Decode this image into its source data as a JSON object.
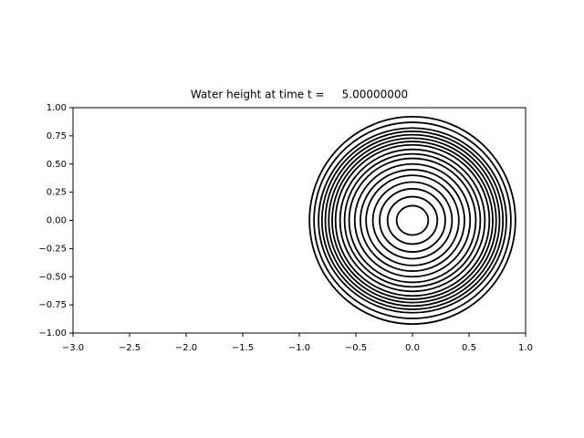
{
  "chart_data": {
    "type": "contour",
    "title": "Water height at time t =     5.00000000",
    "color": "#000000",
    "contours": [
      {
        "cx": 0.0,
        "cy": 0.0,
        "rx": 0.14,
        "ry": 0.13
      },
      {
        "cx": 0.0,
        "cy": 0.0,
        "rx": 0.22,
        "ry": 0.21
      },
      {
        "cx": 0.0,
        "cy": 0.0,
        "rx": 0.29,
        "ry": 0.28
      },
      {
        "cx": 0.0,
        "cy": 0.0,
        "rx": 0.35,
        "ry": 0.34
      },
      {
        "cx": 0.0,
        "cy": 0.0,
        "rx": 0.41,
        "ry": 0.4
      },
      {
        "cx": 0.0,
        "cy": 0.0,
        "rx": 0.46,
        "ry": 0.45
      },
      {
        "cx": 0.0,
        "cy": 0.0,
        "rx": 0.51,
        "ry": 0.5
      },
      {
        "cx": 0.0,
        "cy": 0.0,
        "rx": 0.56,
        "ry": 0.55
      },
      {
        "cx": 0.0,
        "cy": 0.0,
        "rx": 0.6,
        "ry": 0.59
      },
      {
        "cx": 0.0,
        "cy": 0.0,
        "rx": 0.64,
        "ry": 0.63
      },
      {
        "cx": 0.0,
        "cy": 0.0,
        "rx": 0.68,
        "ry": 0.67
      },
      {
        "cx": 0.0,
        "cy": 0.0,
        "rx": 0.71,
        "ry": 0.7
      },
      {
        "cx": 0.0,
        "cy": 0.0,
        "rx": 0.74,
        "ry": 0.73
      },
      {
        "cx": 0.0,
        "cy": 0.0,
        "rx": 0.77,
        "ry": 0.76
      },
      {
        "cx": 0.0,
        "cy": 0.0,
        "rx": 0.8,
        "ry": 0.79
      },
      {
        "cx": 0.0,
        "cy": 0.0,
        "rx": 0.83,
        "ry": 0.82
      },
      {
        "cx": 0.0,
        "cy": 0.0,
        "rx": 0.87,
        "ry": 0.87
      },
      {
        "cx": 0.0,
        "cy": 0.0,
        "rx": 0.91,
        "ry": 0.92
      }
    ],
    "xlim": [
      -3,
      1
    ],
    "ylim": [
      -1,
      1
    ],
    "xticks": [
      {
        "value": -3,
        "label": "−3.0"
      },
      {
        "value": -2.5,
        "label": "−2.5"
      },
      {
        "value": -2,
        "label": "−2.0"
      },
      {
        "value": -1.5,
        "label": "−1.5"
      },
      {
        "value": -1,
        "label": "−1.0"
      },
      {
        "value": -0.5,
        "label": "−0.5"
      },
      {
        "value": 0,
        "label": "0.0"
      },
      0.5,
      {
        "value": 1,
        "label": "1.0"
      }
    ],
    "yticks": [
      {
        "value": -1,
        "label": "−1.00"
      },
      {
        "value": -0.75,
        "label": "−0.75"
      },
      {
        "value": -0.5,
        "label": "−0.50"
      },
      {
        "value": -0.25,
        "label": "−0.25"
      },
      {
        "value": 0,
        "label": "0.00"
      },
      {
        "value": 0.25,
        "label": "0.25"
      },
      {
        "value": 0.5,
        "label": "0.50"
      },
      {
        "value": 0.75,
        "label": "0.75"
      },
      {
        "value": 1,
        "label": "1.00"
      }
    ],
    "grid": false
  }
}
